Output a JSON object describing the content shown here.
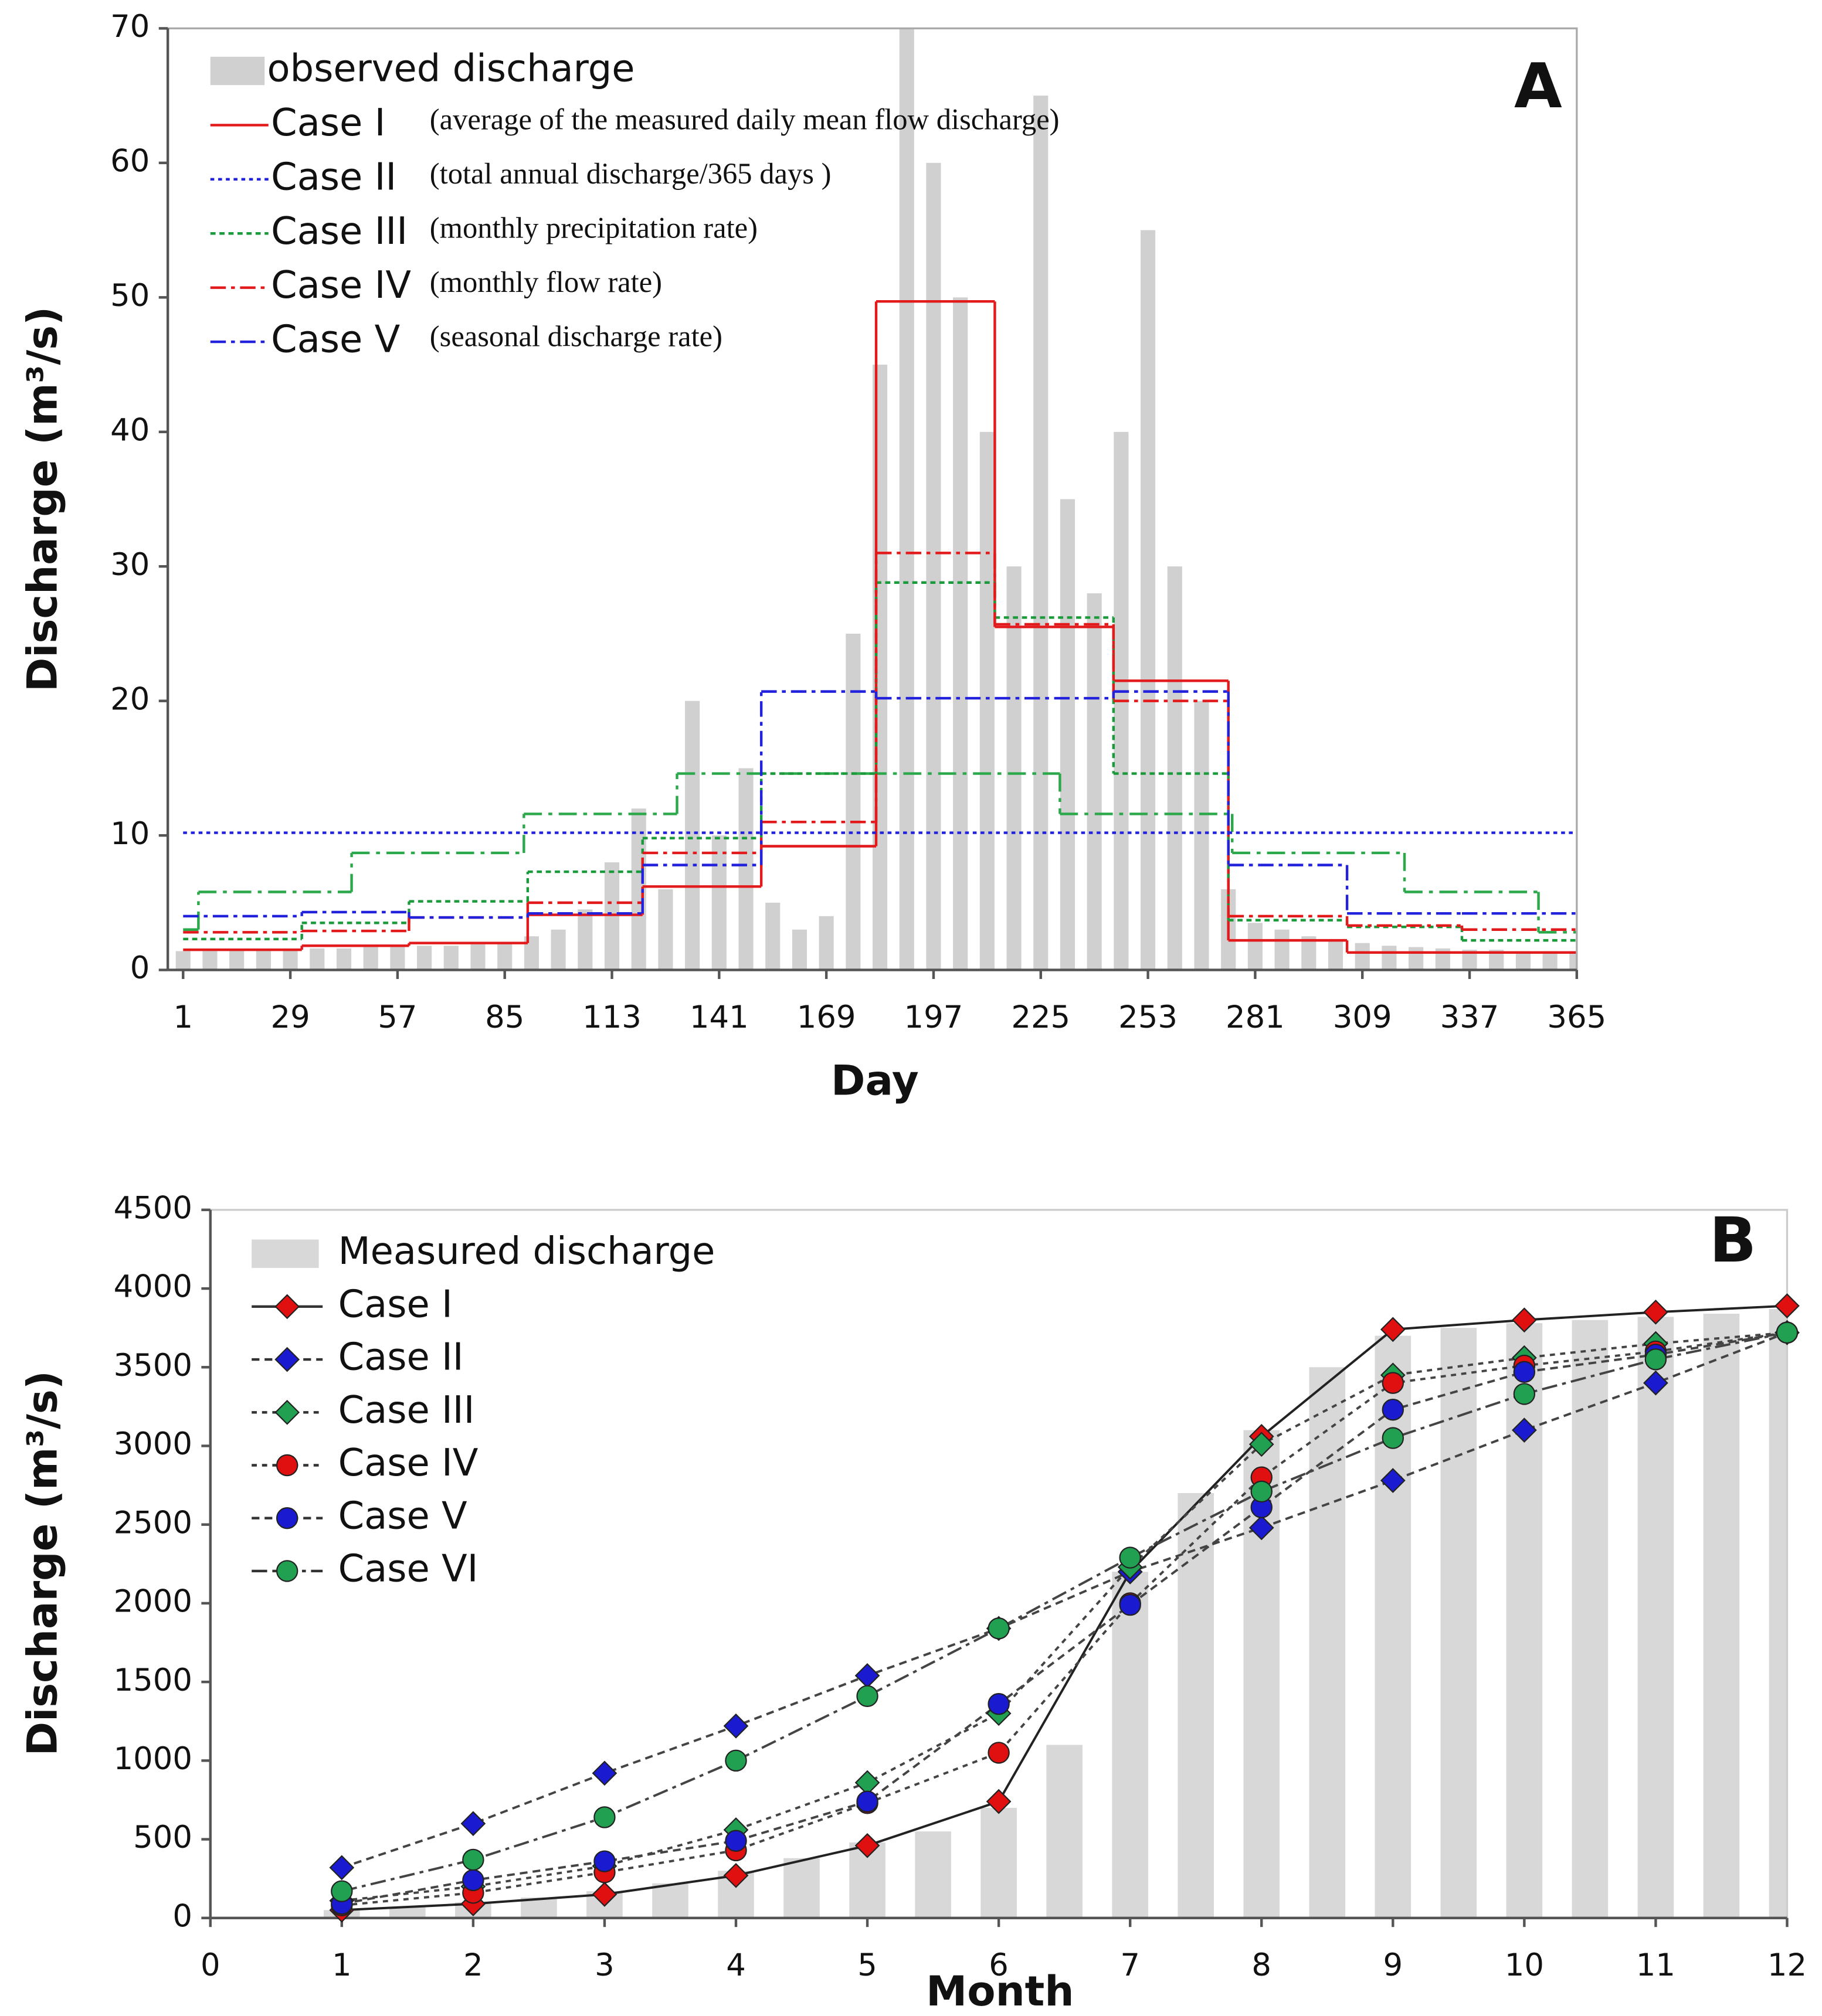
{
  "chart_data": [
    {
      "type": "step",
      "panel": "A",
      "xlabel": "Day",
      "ylabel": "Discharge (m³/s)",
      "xlim": [
        -3,
        365
      ],
      "ylim": [
        0,
        70
      ],
      "xticks": [
        1,
        29,
        57,
        85,
        113,
        141,
        169,
        197,
        225,
        253,
        281,
        309,
        337,
        365
      ],
      "yticks": [
        0,
        10,
        20,
        30,
        40,
        50,
        60,
        70
      ],
      "bars": {
        "name": "observed discharge",
        "color": "#d0d0d0",
        "x": [
          1,
          8,
          15,
          22,
          29,
          36,
          43,
          50,
          57,
          64,
          71,
          78,
          85,
          92,
          99,
          106,
          113,
          120,
          127,
          134,
          141,
          148,
          155,
          162,
          169,
          176,
          183,
          190,
          197,
          204,
          211,
          218,
          225,
          232,
          239,
          246,
          253,
          260,
          267,
          274,
          281,
          288,
          295,
          302,
          309,
          316,
          323,
          330,
          337,
          344,
          351,
          358,
          365
        ],
        "values": [
          1.4,
          1.4,
          1.5,
          1.5,
          1.6,
          1.6,
          1.6,
          1.7,
          1.7,
          1.8,
          1.8,
          1.9,
          2.0,
          2.5,
          3.0,
          4.5,
          8.0,
          12.0,
          6.0,
          20.0,
          10.0,
          15.0,
          5.0,
          3.0,
          4.0,
          25.0,
          45.0,
          70.0,
          60.0,
          50.0,
          40.0,
          30.0,
          65.0,
          35.0,
          28.0,
          40.0,
          55.0,
          30.0,
          20.0,
          6.0,
          3.5,
          3.0,
          2.5,
          2.2,
          2.0,
          1.8,
          1.7,
          1.6,
          1.5,
          1.5,
          1.4,
          1.4,
          1.4
        ]
      },
      "series": [
        {
          "color": "#2aa84a",
          "dash": "14,5,3,5",
          "x": [
            1,
            5,
            45,
            90,
            130,
            180,
            230,
            275,
            320,
            355
          ],
          "values": [
            3.0,
            5.8,
            8.7,
            11.6,
            14.6,
            14.6,
            11.6,
            8.7,
            5.8,
            2.8
          ]
        },
        {
          "name": "Case I",
          "description": "(average of the measured daily mean flow discharge)",
          "color": "#e31a1c",
          "dash": "",
          "x": [
            1,
            32,
            60,
            91,
            121,
            152,
            182,
            213,
            244,
            274,
            305,
            335
          ],
          "values": [
            1.5,
            1.8,
            2.0,
            4.1,
            6.2,
            9.2,
            49.7,
            25.5,
            21.5,
            2.2,
            1.3,
            1.3
          ]
        },
        {
          "name": "Case II",
          "description": "(total annual discharge/365 days )",
          "color": "#2222dd",
          "dash": "3,3",
          "x": [
            1
          ],
          "values": [
            10.2
          ]
        },
        {
          "name": "Case III",
          "description": "(monthly precipitation rate)",
          "color": "#1a9a3a",
          "dash": "4,3",
          "x": [
            1,
            32,
            60,
            91,
            121,
            152,
            182,
            213,
            244,
            274,
            305,
            335
          ],
          "values": [
            2.3,
            3.5,
            5.1,
            7.3,
            9.8,
            14.6,
            28.8,
            26.2,
            14.6,
            3.7,
            3.2,
            2.2
          ]
        },
        {
          "name": "Case IV",
          "description": "(monthly flow rate)",
          "color": "#e31a1c",
          "dash": "12,4,3,4",
          "x": [
            1,
            32,
            60,
            91,
            121,
            152,
            182,
            213,
            244,
            274,
            305,
            335
          ],
          "values": [
            2.8,
            2.9,
            3.9,
            5.0,
            8.7,
            11.0,
            31.0,
            25.7,
            20.0,
            4.0,
            3.3,
            3.0
          ]
        },
        {
          "name": "Case V",
          "description": "(seasonal discharge rate)",
          "color": "#2222dd",
          "dash": "12,4,3,4",
          "x": [
            1,
            32,
            60,
            91,
            121,
            152,
            182,
            213,
            244,
            274,
            305,
            335
          ],
          "values": [
            4.0,
            4.3,
            3.9,
            4.2,
            7.8,
            20.7,
            20.2,
            20.2,
            20.7,
            7.8,
            4.2,
            4.2
          ]
        }
      ]
    },
    {
      "type": "line",
      "panel": "B",
      "xlabel": "Month",
      "ylabel": "Discharge (m³/s)",
      "xlim": [
        0,
        12
      ],
      "ylim": [
        0,
        4500
      ],
      "xticks": [
        0,
        1,
        2,
        3,
        4,
        5,
        6,
        7,
        8,
        9,
        10,
        11,
        12
      ],
      "yticks": [
        0,
        500,
        1000,
        1500,
        2000,
        2500,
        3000,
        3500,
        4000,
        4500
      ],
      "bars": {
        "name": "Measured discharge",
        "color": "#d8d8d8",
        "x": [
          1,
          1.5,
          2,
          2.5,
          3,
          3.5,
          4,
          4.5,
          5,
          5.5,
          6,
          6.5,
          7,
          7.5,
          8,
          8.5,
          9,
          9.5,
          10,
          10.5,
          11,
          11.5,
          12
        ],
        "values": [
          50,
          70,
          100,
          130,
          170,
          220,
          300,
          380,
          480,
          550,
          700,
          1100,
          2200,
          2700,
          3100,
          3500,
          3700,
          3750,
          3780,
          3800,
          3820,
          3840,
          3870
        ]
      },
      "x": [
        1,
        2,
        3,
        4,
        5,
        6,
        7,
        8,
        9,
        10,
        11,
        12
      ],
      "series": [
        {
          "name": "Case I",
          "marker": "diamond",
          "color": "#e01010",
          "dash": "",
          "values": [
            50,
            90,
            150,
            270,
            460,
            740,
            2200,
            3060,
            3740,
            3800,
            3850,
            3890
          ]
        },
        {
          "name": "Case II",
          "marker": "diamond",
          "color": "#1a1ad0",
          "dash": "6,4",
          "values": [
            320,
            600,
            920,
            1220,
            1540,
            1840,
            2200,
            2480,
            2780,
            3100,
            3400,
            3720
          ]
        },
        {
          "name": "Case III",
          "marker": "diamond",
          "color": "#20a050",
          "dash": "4,4",
          "values": [
            110,
            200,
            330,
            560,
            860,
            1300,
            2230,
            3010,
            3450,
            3560,
            3650,
            3720
          ]
        },
        {
          "name": "Case IV",
          "marker": "circle",
          "color": "#e01010",
          "dash": "4,4",
          "values": [
            80,
            160,
            290,
            430,
            730,
            1050,
            2000,
            2800,
            3400,
            3510,
            3600,
            3720
          ]
        },
        {
          "name": "Case V",
          "marker": "circle",
          "color": "#1a1ad0",
          "dash": "6,4",
          "values": [
            90,
            240,
            360,
            490,
            740,
            1360,
            1990,
            2610,
            3230,
            3470,
            3580,
            3720
          ]
        },
        {
          "name": "Case VI",
          "marker": "circle",
          "color": "#20a050",
          "dash": "12,4,3,4",
          "values": [
            170,
            370,
            640,
            1000,
            1410,
            1840,
            2290,
            2710,
            3050,
            3330,
            3550,
            3720
          ]
        }
      ]
    }
  ]
}
